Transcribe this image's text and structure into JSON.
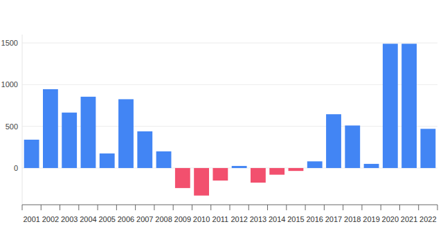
{
  "chart_data": {
    "type": "bar",
    "categories": [
      "2001",
      "2002",
      "2003",
      "2004",
      "2005",
      "2006",
      "2007",
      "2008",
      "2009",
      "2010",
      "2011",
      "2012",
      "2013",
      "2014",
      "2015",
      "2016",
      "2017",
      "2018",
      "2019",
      "2020",
      "2021",
      "2022"
    ],
    "values": [
      340,
      945,
      665,
      855,
      175,
      825,
      440,
      200,
      -240,
      -330,
      -150,
      25,
      -175,
      -80,
      -35,
      80,
      645,
      510,
      50,
      1490,
      1490,
      470
    ],
    "colors": [
      "#4285f4",
      "#4285f4",
      "#4285f4",
      "#4285f4",
      "#4285f4",
      "#4285f4",
      "#4285f4",
      "#4285f4",
      "#f2506e",
      "#f2506e",
      "#f2506e",
      "#4285f4",
      "#f2506e",
      "#f2506e",
      "#f2506e",
      "#4285f4",
      "#4285f4",
      "#4285f4",
      "#4285f4",
      "#4285f4",
      "#4285f4",
      "#4285f4"
    ],
    "ylim": [
      -440,
      1600
    ],
    "yticks": [
      0,
      500,
      1000,
      1500
    ],
    "grid": true
  }
}
